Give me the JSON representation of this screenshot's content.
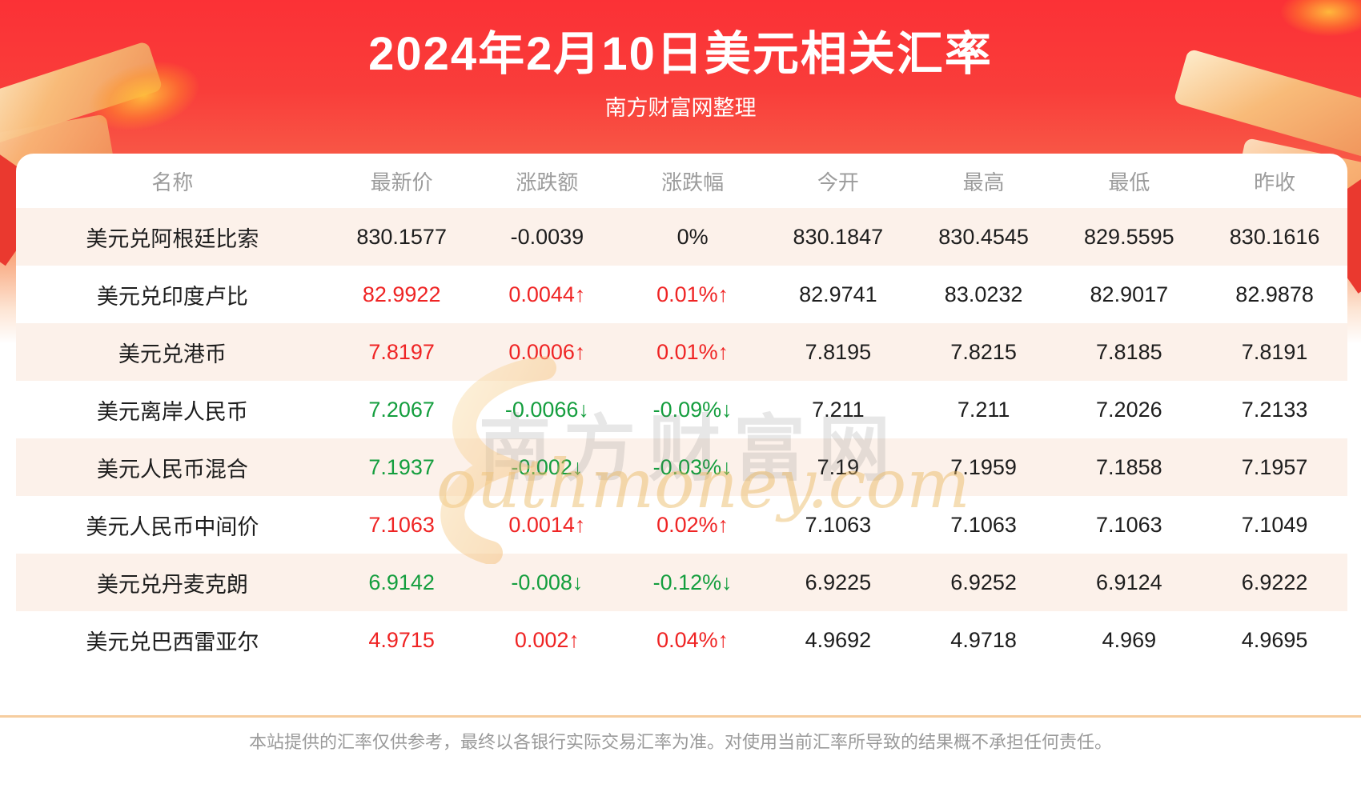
{
  "header": {
    "title": "2024年2月10日美元相关汇率",
    "subtitle": "南方财富网整理"
  },
  "chart_data": {
    "type": "table",
    "title": "2024年2月10日美元相关汇率",
    "columns": [
      "名称",
      "最新价",
      "涨跌额",
      "涨跌幅",
      "今开",
      "最高",
      "最低",
      "昨收"
    ],
    "rows": [
      {
        "name": "美元兑阿根廷比索",
        "latest": "830.1577",
        "change": "-0.0039",
        "pct": "0%",
        "open": "830.1847",
        "high": "830.4545",
        "low": "829.5595",
        "prev": "830.1616",
        "trend": "flat"
      },
      {
        "name": "美元兑印度卢比",
        "latest": "82.9922",
        "change": "0.0044↑",
        "pct": "0.01%↑",
        "open": "82.9741",
        "high": "83.0232",
        "low": "82.9017",
        "prev": "82.9878",
        "trend": "up"
      },
      {
        "name": "美元兑港币",
        "latest": "7.8197",
        "change": "0.0006↑",
        "pct": "0.01%↑",
        "open": "7.8195",
        "high": "7.8215",
        "low": "7.8185",
        "prev": "7.8191",
        "trend": "up"
      },
      {
        "name": "美元离岸人民币",
        "latest": "7.2067",
        "change": "-0.0066↓",
        "pct": "-0.09%↓",
        "open": "7.211",
        "high": "7.211",
        "low": "7.2026",
        "prev": "7.2133",
        "trend": "down"
      },
      {
        "name": "美元人民币混合",
        "latest": "7.1937",
        "change": "-0.002↓",
        "pct": "-0.03%↓",
        "open": "7.19",
        "high": "7.1959",
        "low": "7.1858",
        "prev": "7.1957",
        "trend": "down"
      },
      {
        "name": "美元人民币中间价",
        "latest": "7.1063",
        "change": "0.0014↑",
        "pct": "0.02%↑",
        "open": "7.1063",
        "high": "7.1063",
        "low": "7.1063",
        "prev": "7.1049",
        "trend": "up"
      },
      {
        "name": "美元兑丹麦克朗",
        "latest": "6.9142",
        "change": "-0.008↓",
        "pct": "-0.12%↓",
        "open": "6.9225",
        "high": "6.9252",
        "low": "6.9124",
        "prev": "6.9222",
        "trend": "down"
      },
      {
        "name": "美元兑巴西雷亚尔",
        "latest": "4.9715",
        "change": "0.002↑",
        "pct": "0.04%↑",
        "open": "4.9692",
        "high": "4.9718",
        "low": "4.969",
        "prev": "4.9695",
        "trend": "up"
      }
    ]
  },
  "colors": {
    "up": "#ef2424",
    "down": "#149e3e",
    "flat": "#1d1d1d",
    "accent_red": "#fb3136",
    "stripe": "#fcf1ea",
    "divider": "#f6cd9f"
  },
  "watermark": {
    "cn": "南方财富网",
    "en": "outhmoney.com"
  },
  "footer": {
    "disclaimer": "本站提供的汇率仅供参考，最终以各银行实际交易汇率为准。对使用当前汇率所导致的结果概不承担任何责任。"
  }
}
